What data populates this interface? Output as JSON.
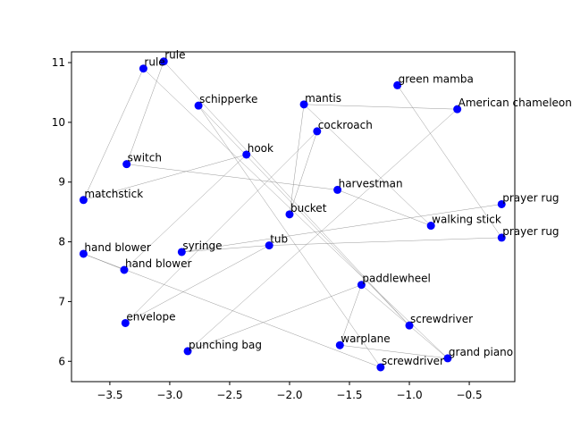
{
  "chart_data": {
    "type": "scatter",
    "title": "",
    "xlabel": "",
    "ylabel": "",
    "xlim": [
      -3.82,
      -0.12
    ],
    "ylim": [
      5.66,
      11.18
    ],
    "xticks": [
      -3.5,
      -3.0,
      -2.5,
      -2.0,
      -1.5,
      -1.0,
      -0.5
    ],
    "xtick_labels": [
      "−3.5",
      "−3.0",
      "−2.5",
      "−2.0",
      "−1.5",
      "−1.0",
      "−0.5"
    ],
    "yticks": [
      6,
      7,
      8,
      9,
      10,
      11
    ],
    "ytick_labels": [
      "6",
      "7",
      "8",
      "9",
      "10",
      "11"
    ],
    "grid": false,
    "point_color": "#0000ff",
    "edge_color": "#808080",
    "points": [
      {
        "label": "rule",
        "x": -3.05,
        "y": 11.02
      },
      {
        "label": "rule",
        "x": -3.22,
        "y": 10.9
      },
      {
        "label": "schipperke",
        "x": -2.76,
        "y": 10.28
      },
      {
        "label": "mantis",
        "x": -1.88,
        "y": 10.3
      },
      {
        "label": "green mamba",
        "x": -1.1,
        "y": 10.62
      },
      {
        "label": "American chameleon",
        "x": -0.6,
        "y": 10.22
      },
      {
        "label": "cockroach",
        "x": -1.77,
        "y": 9.85
      },
      {
        "label": "switch",
        "x": -3.36,
        "y": 9.3
      },
      {
        "label": "hook",
        "x": -2.36,
        "y": 9.46
      },
      {
        "label": "matchstick",
        "x": -3.72,
        "y": 8.7
      },
      {
        "label": "harvestman",
        "x": -1.6,
        "y": 8.87
      },
      {
        "label": "prayer rug",
        "x": -0.23,
        "y": 8.63
      },
      {
        "label": "bucket",
        "x": -2.0,
        "y": 8.46
      },
      {
        "label": "walking stick",
        "x": -0.82,
        "y": 8.27
      },
      {
        "label": "prayer rug",
        "x": -0.23,
        "y": 8.07
      },
      {
        "label": "tub",
        "x": -2.17,
        "y": 7.94
      },
      {
        "label": "syringe",
        "x": -2.9,
        "y": 7.83
      },
      {
        "label": "hand blower",
        "x": -3.72,
        "y": 7.8
      },
      {
        "label": "hand blower",
        "x": -3.38,
        "y": 7.53
      },
      {
        "label": "paddlewheel",
        "x": -1.4,
        "y": 7.28
      },
      {
        "label": "envelope",
        "x": -3.37,
        "y": 6.64
      },
      {
        "label": "screwdriver",
        "x": -1.0,
        "y": 6.6
      },
      {
        "label": "warplane",
        "x": -1.58,
        "y": 6.27
      },
      {
        "label": "punching bag",
        "x": -2.85,
        "y": 6.17
      },
      {
        "label": "grand piano",
        "x": -0.68,
        "y": 6.05
      },
      {
        "label": "screwdriver",
        "x": -1.24,
        "y": 5.9
      }
    ],
    "edges": [
      [
        0,
        7
      ],
      [
        0,
        21
      ],
      [
        1,
        9
      ],
      [
        1,
        24
      ],
      [
        2,
        25
      ],
      [
        2,
        21
      ],
      [
        3,
        5
      ],
      [
        4,
        14
      ],
      [
        5,
        23
      ],
      [
        6,
        12
      ],
      [
        6,
        20
      ],
      [
        8,
        9
      ],
      [
        8,
        18
      ],
      [
        10,
        13
      ],
      [
        10,
        7
      ],
      [
        11,
        16
      ],
      [
        12,
        3
      ],
      [
        13,
        3
      ],
      [
        15,
        16
      ],
      [
        15,
        14
      ],
      [
        17,
        18
      ],
      [
        17,
        25
      ],
      [
        19,
        23
      ],
      [
        19,
        22
      ],
      [
        22,
        24
      ],
      [
        24,
        19
      ],
      [
        20,
        15
      ]
    ]
  }
}
